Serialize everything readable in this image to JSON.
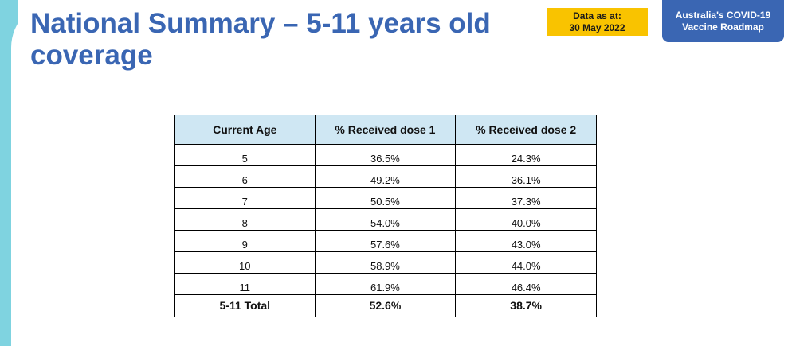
{
  "header": {
    "title": "National Summary – 5-11 years old coverage",
    "date_label": "Data as at:",
    "date_value": "30 May 2022",
    "badge_line1": "Australia's COVID-19",
    "badge_line2": "Vaccine Roadmap"
  },
  "colors": {
    "title": "#3a66b3",
    "date_box": "#f9c300",
    "badge": "#3a66b3",
    "table_header": "#cfe7f3",
    "accent": "#7fd3e0"
  },
  "table": {
    "headers": [
      "Current Age",
      "% Received dose 1",
      "% Received dose 2"
    ],
    "rows": [
      [
        "5",
        "36.5%",
        "24.3%"
      ],
      [
        "6",
        "49.2%",
        "36.1%"
      ],
      [
        "7",
        "50.5%",
        "37.3%"
      ],
      [
        "8",
        "54.0%",
        "40.0%"
      ],
      [
        "9",
        "57.6%",
        "43.0%"
      ],
      [
        "10",
        "58.9%",
        "44.0%"
      ],
      [
        "11",
        "61.9%",
        "46.4%"
      ]
    ],
    "total": [
      "5-11 Total",
      "52.6%",
      "38.7%"
    ]
  }
}
